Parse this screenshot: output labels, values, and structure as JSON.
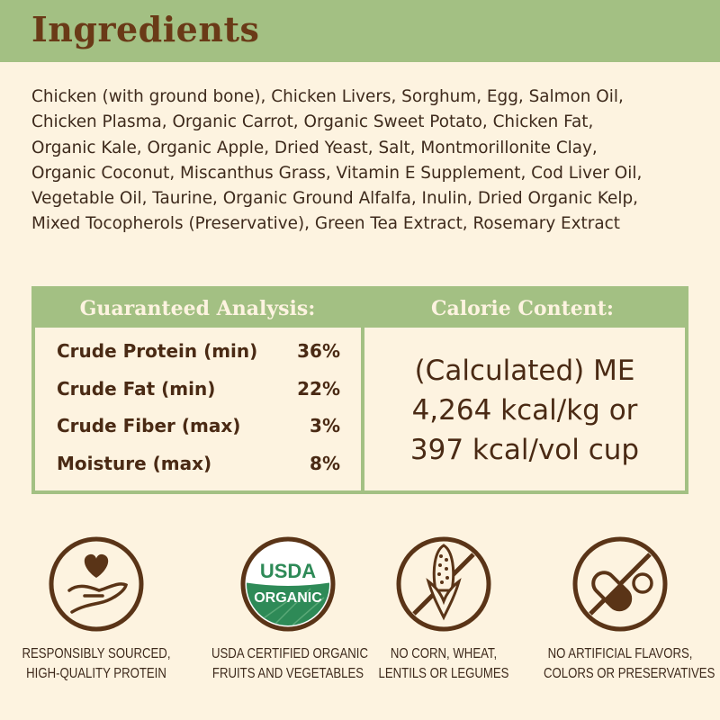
{
  "header": {
    "title": "Ingredients"
  },
  "ingredients": "Chicken (with ground bone), Chicken Livers, Sorghum, Egg, Salmon Oil,\nChicken Plasma, Organic Carrot, Organic Sweet Potato, Chicken Fat,\nOrganic Kale, Organic Apple, Dried Yeast, Salt, Montmorillonite Clay,\nOrganic Coconut, Miscanthus Grass, Vitamin E Supplement, Cod Liver Oil,\nVegetable Oil, Taurine, Organic Ground Alfalfa, Inulin, Dried Organic Kelp,\nMixed Tocopherols (Preservative), Green Tea Extract, Rosemary Extract",
  "analysis": {
    "title": "Guaranteed Analysis:",
    "rows": [
      {
        "label": "Crude Protein (min)",
        "value": "36%"
      },
      {
        "label": "Crude Fat (min)",
        "value": "22%"
      },
      {
        "label": "Crude Fiber (max)",
        "value": "3%"
      },
      {
        "label": "Moisture (max)",
        "value": "8%"
      }
    ]
  },
  "calorie": {
    "title": "Calorie Content:",
    "lines": [
      "(Calculated) ME",
      "4,264 kcal/kg or",
      "397 kcal/vol cup"
    ]
  },
  "badges": [
    {
      "icon": "heart-hand-icon",
      "line1": "RESPONSIBLY SOURCED,",
      "line2": "HIGH-QUALITY PROTEIN"
    },
    {
      "icon": "usda-organic-seal",
      "seal_top": "USDA",
      "seal_bottom": "ORGANIC",
      "line1": "USDA CERTIFIED ORGANIC",
      "line2": "FRUITS AND VEGETABLES"
    },
    {
      "icon": "no-corn-icon",
      "line1": "NO CORN, WHEAT,",
      "line2": "LENTILS OR LEGUMES"
    },
    {
      "icon": "no-pills-icon",
      "line1": "NO ARTIFICIAL FLAVORS,",
      "line2": "COLORS OR PRESERVATIVES"
    }
  ],
  "colors": {
    "green": "#a3c083",
    "brown": "#5a3417",
    "background": "#fdf3e0",
    "usda_green": "#2e8a57"
  }
}
